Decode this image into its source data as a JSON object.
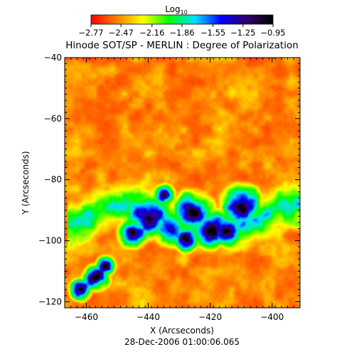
{
  "chart_data": {
    "type": "heatmap",
    "title": "Hinode SOT/SP - MERLIN : Degree of Polarization",
    "xlabel": "X (Arcseconds)",
    "ylabel": "Y (Arcseconds)",
    "footer": "28-Dec-2006 01:00:06.065",
    "xlim": [
      -467,
      -391
    ],
    "ylim": [
      -122,
      -40
    ],
    "x_ticks": [
      -460,
      -440,
      -420,
      -400
    ],
    "y_ticks": [
      -120,
      -100,
      -80,
      -60,
      -40
    ],
    "colorbar": {
      "title": "Log",
      "title_subscript": "10",
      "range": [
        -2.77,
        -0.95
      ],
      "tick_values": [
        -2.77,
        -2.47,
        -2.16,
        -1.86,
        -1.55,
        -1.25,
        -0.95
      ],
      "tick_labels": [
        "−2.77",
        "−2.47",
        "−2.16",
        "−1.86",
        "−1.55",
        "−1.25",
        "−0.95"
      ],
      "colormap": "rainbow",
      "color_stops": [
        "#ff0000",
        "#ff8000",
        "#ffff00",
        "#00ff00",
        "#00e0ff",
        "#0000ff",
        "#30006a",
        "#000000"
      ]
    },
    "grid": false,
    "features": "Mostly low-polarization (red/orange/yellow) granular field; high-polarization (blue to dark purple) network band running roughly across Y = -85 to -100 from X = -460 to -400, plus isolated high-polarization patches near Y = -110 to -120 at X = -462 to -452."
  }
}
